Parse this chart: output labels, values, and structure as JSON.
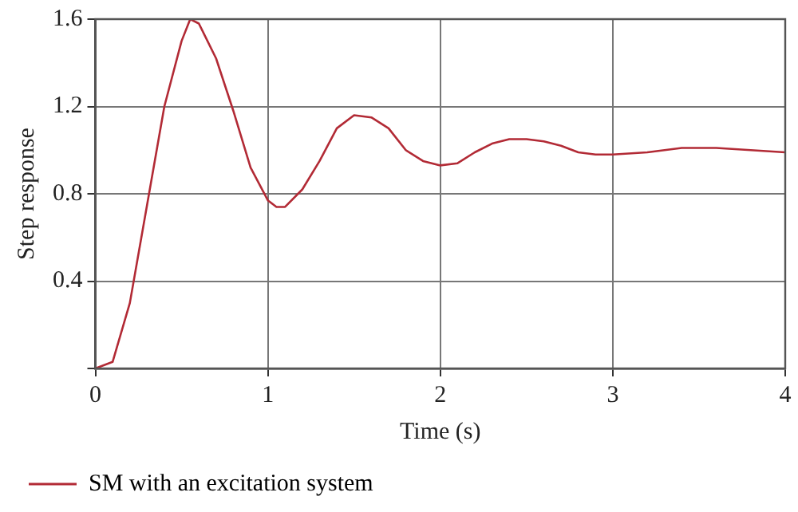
{
  "chart_data": {
    "type": "line",
    "xlabel": "Time (s)",
    "ylabel": "Step response",
    "xlim": [
      0,
      4
    ],
    "ylim": [
      0,
      1.6
    ],
    "xticks": [
      0,
      1,
      2,
      3,
      4
    ],
    "yticks": [
      {
        "value": 0,
        "label": null
      },
      0.4,
      0.8,
      1.2,
      1.6
    ],
    "grid": true,
    "legend": "bottom",
    "marker": "none",
    "line_style": "solid",
    "series": [
      {
        "name": "SM with an excitation system",
        "color": "#b22a35",
        "x": [
          0,
          0.1,
          0.2,
          0.3,
          0.4,
          0.5,
          0.55,
          0.6,
          0.7,
          0.8,
          0.9,
          1.0,
          1.05,
          1.1,
          1.2,
          1.3,
          1.4,
          1.5,
          1.6,
          1.7,
          1.8,
          1.9,
          2.0,
          2.1,
          2.2,
          2.3,
          2.4,
          2.5,
          2.6,
          2.7,
          2.8,
          2.9,
          3.0,
          3.2,
          3.4,
          3.6,
          3.8,
          4.0
        ],
        "values": [
          0,
          0.03,
          0.3,
          0.75,
          1.2,
          1.5,
          1.6,
          1.58,
          1.42,
          1.18,
          0.92,
          0.77,
          0.74,
          0.74,
          0.82,
          0.95,
          1.1,
          1.16,
          1.15,
          1.1,
          1.0,
          0.95,
          0.93,
          0.94,
          0.99,
          1.03,
          1.05,
          1.05,
          1.04,
          1.02,
          0.99,
          0.98,
          0.98,
          0.99,
          1.01,
          1.01,
          1.0,
          0.99
        ]
      }
    ]
  }
}
